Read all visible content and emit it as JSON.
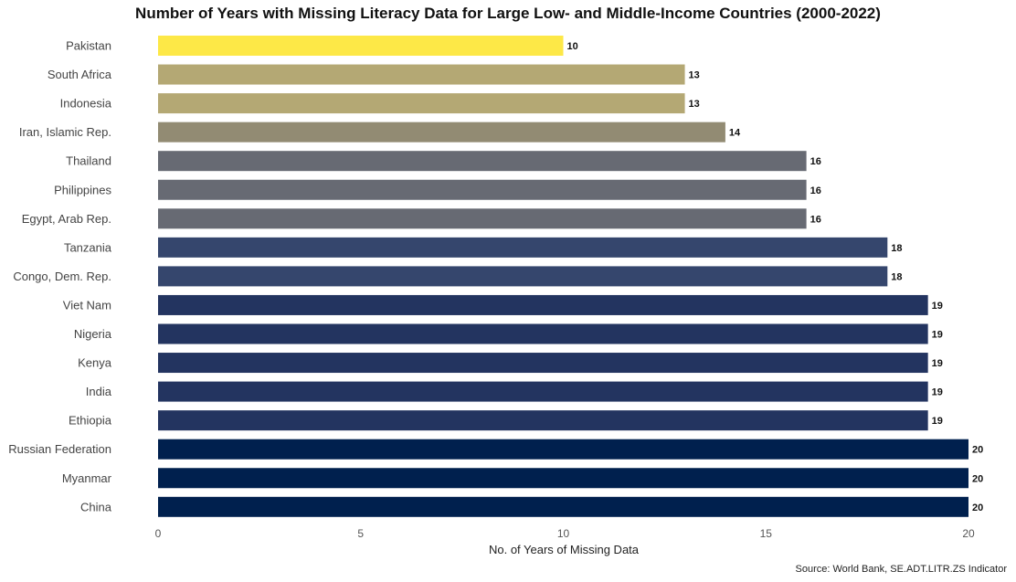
{
  "chart_data": {
    "type": "bar",
    "orientation": "horizontal",
    "title": "Number of Years with Missing Literacy Data for Large Low- and Middle-Income Countries (2000-2022)",
    "xlabel": "No. of Years of Missing Data",
    "ylabel": "",
    "xlim": [
      0,
      20
    ],
    "xticks": [
      0,
      5,
      10,
      15,
      20
    ],
    "grid": false,
    "categories": [
      "Pakistan",
      "South Africa",
      "Indonesia",
      "Iran, Islamic Rep.",
      "Thailand",
      "Philippines",
      "Egypt, Arab Rep.",
      "Tanzania",
      "Congo, Dem. Rep.",
      "Viet Nam",
      "Nigeria",
      "Kenya",
      "India",
      "Ethiopia",
      "Russian Federation",
      "Myanmar",
      "China"
    ],
    "values": [
      10,
      13,
      13,
      14,
      16,
      16,
      16,
      18,
      18,
      19,
      19,
      19,
      19,
      19,
      20,
      20,
      20
    ],
    "colors": [
      "#fde847",
      "#b4a874",
      "#b4a874",
      "#928b73",
      "#676a73",
      "#676a73",
      "#676a73",
      "#35466d",
      "#35466d",
      "#233460",
      "#233460",
      "#233460",
      "#233460",
      "#233460",
      "#00204e",
      "#00204e",
      "#00204e"
    ],
    "source": "Source: World Bank, SE.ADT.LITR.ZS Indicator"
  }
}
